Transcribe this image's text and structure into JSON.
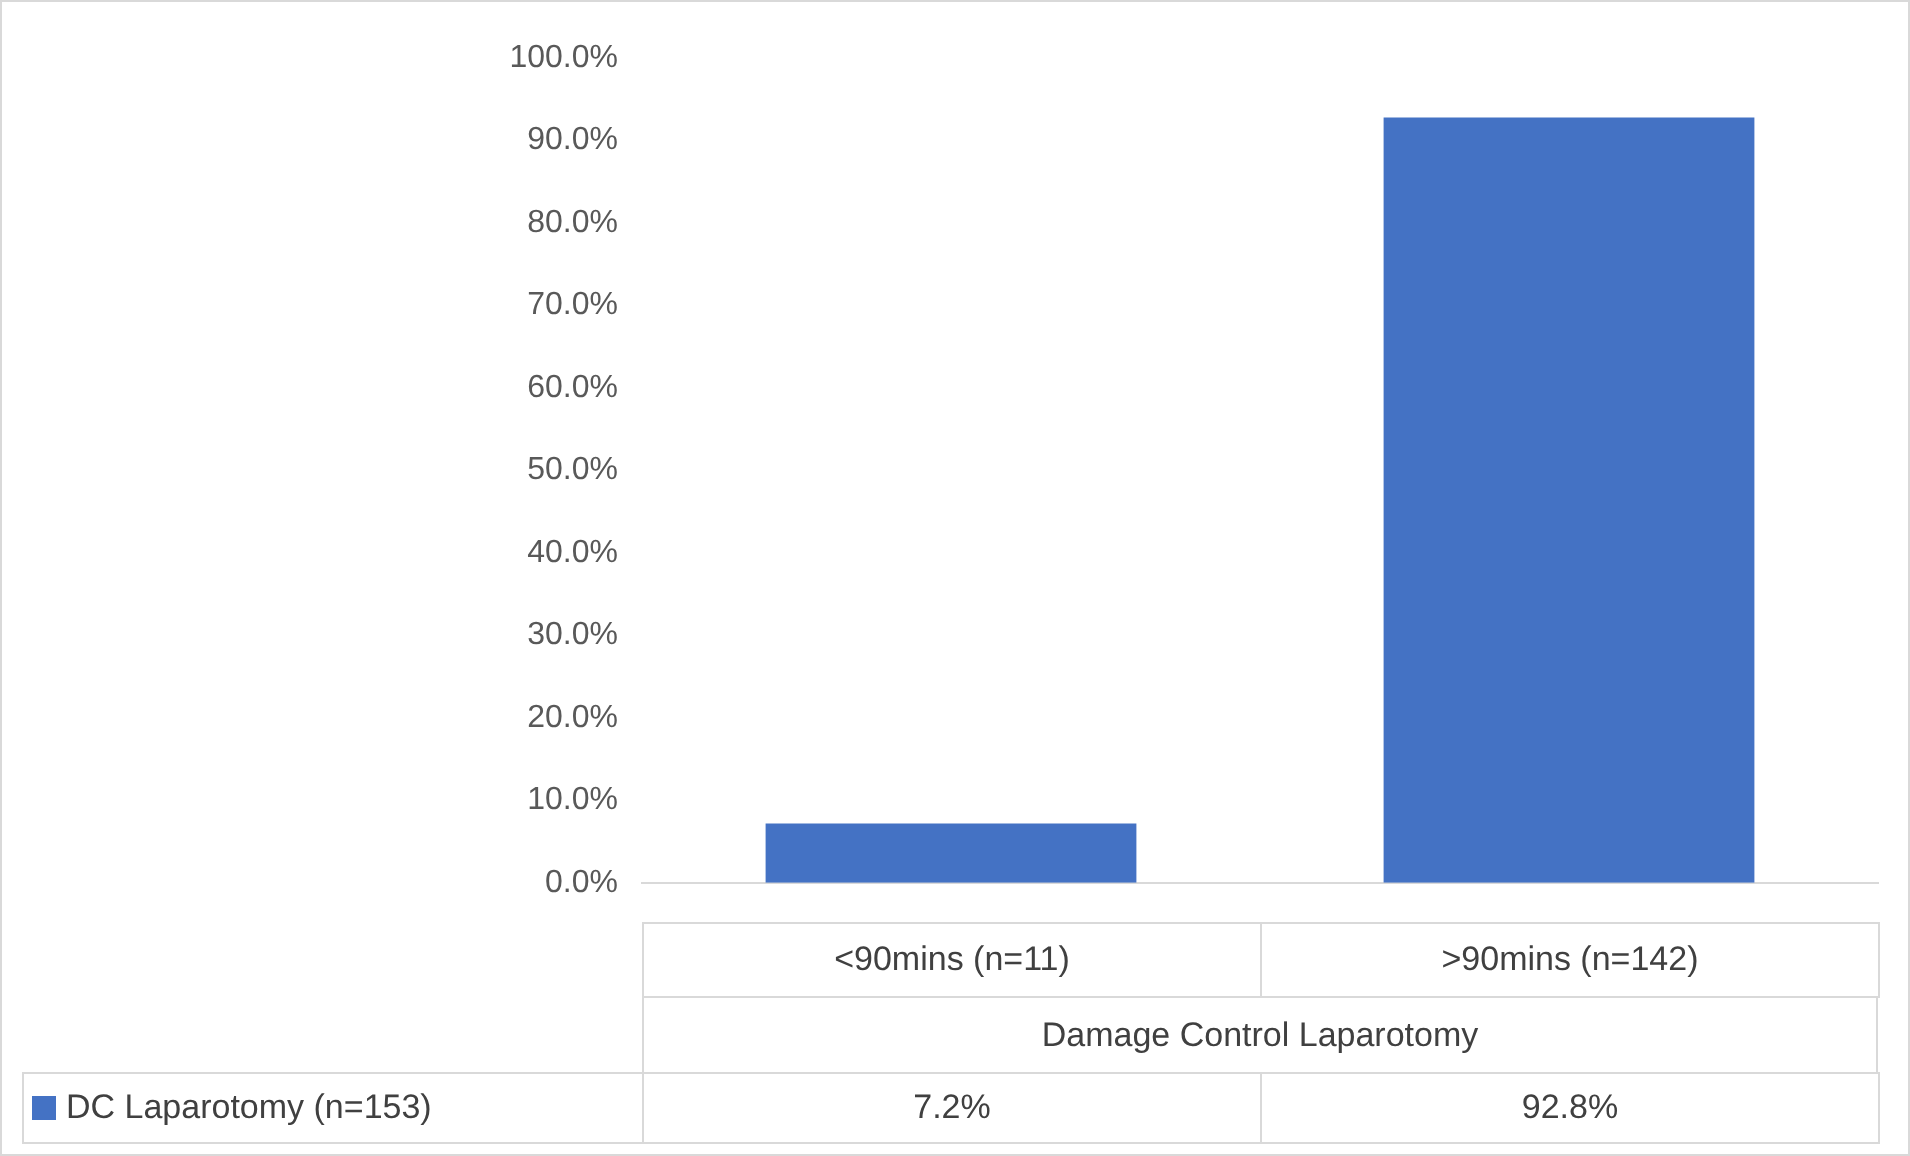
{
  "chart_data": {
    "type": "bar",
    "xlabel": "Damage Control Laparotomy",
    "categories": [
      "<90mins (n=11)",
      ">90mins (n=142)"
    ],
    "series": [
      {
        "name": "DC Laparotomy (n=153)",
        "color": "#4472c4",
        "values": [
          7.2,
          92.8
        ],
        "value_labels": [
          "7.2%",
          "92.8%"
        ]
      }
    ],
    "ylim": [
      0,
      100
    ],
    "yticks": [
      {
        "value": 0,
        "label": "0.0%"
      },
      {
        "value": 10,
        "label": "10.0%"
      },
      {
        "value": 20,
        "label": "20.0%"
      },
      {
        "value": 30,
        "label": "30.0%"
      },
      {
        "value": 40,
        "label": "40.0%"
      },
      {
        "value": 50,
        "label": "50.0%"
      },
      {
        "value": 60,
        "label": "60.0%"
      },
      {
        "value": 70,
        "label": "70.0%"
      },
      {
        "value": 80,
        "label": "80.0%"
      },
      {
        "value": 90,
        "label": "90.0%"
      },
      {
        "value": 100,
        "label": "100.0%"
      }
    ],
    "grid": false,
    "legend": "bottom left"
  }
}
